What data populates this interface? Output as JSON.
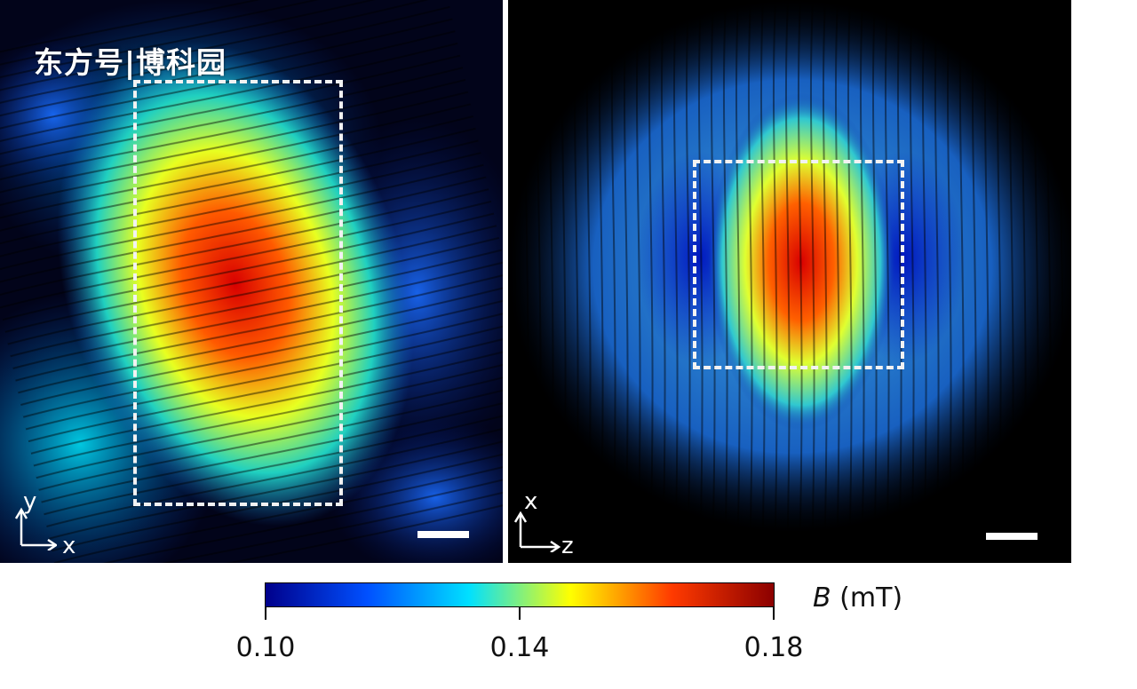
{
  "watermark": "东方号|博科园",
  "panels": {
    "left": {
      "axis_vertical": "y",
      "axis_horizontal": "x"
    },
    "right": {
      "axis_vertical": "x",
      "axis_horizontal": "z"
    }
  },
  "colorbar": {
    "variable": "B",
    "unit": "(mT)",
    "min_label": "0.10",
    "mid_label": "0.14",
    "max_label": "0.18",
    "colormap": [
      "#00008b",
      "#0050ff",
      "#00e0ff",
      "#ffff00",
      "#ff3a00",
      "#8b0000"
    ]
  }
}
